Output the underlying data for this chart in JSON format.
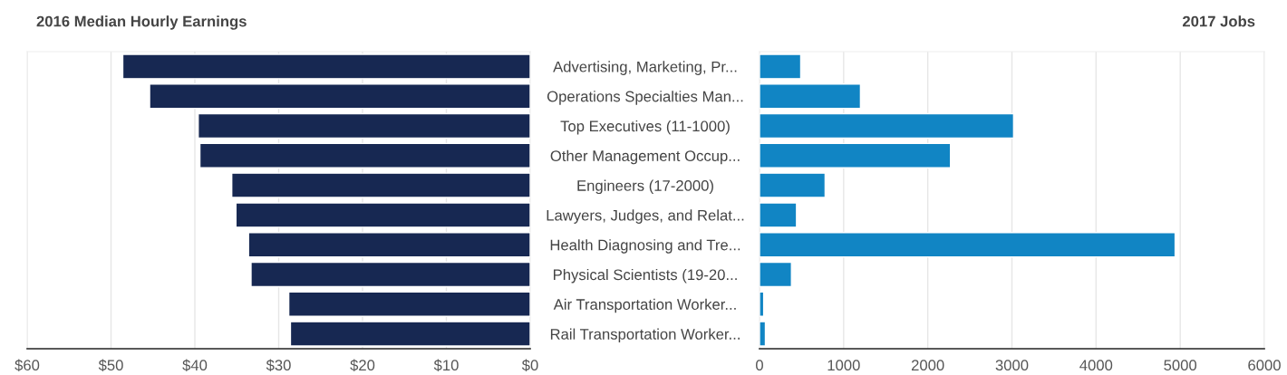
{
  "chart_data": [
    {
      "type": "bar",
      "orientation": "horizontal",
      "title": "2016 Median Hourly Earnings",
      "categories": [
        null,
        null,
        null,
        null,
        null,
        null,
        null,
        null,
        null,
        null
      ],
      "values": [
        48.6,
        45.4,
        39.6,
        39.4,
        35.6,
        35.1,
        33.6,
        33.3,
        28.8,
        28.6
      ],
      "color": "#172852",
      "xlim": [
        60,
        0
      ],
      "xticks": [
        {
          "value": 60,
          "label": "$60"
        },
        {
          "value": 50,
          "label": "$50"
        },
        {
          "value": 40,
          "label": "$40"
        },
        {
          "value": 30,
          "label": "$30"
        },
        {
          "value": 20,
          "label": "$20"
        },
        {
          "value": 10,
          "label": "$10"
        },
        {
          "value": 0,
          "label": "$0"
        }
      ],
      "grid": "x",
      "tick_labels": "x"
    },
    {
      "type": "bar",
      "orientation": "horizontal",
      "title": "2017 Jobs",
      "categories": [
        "Advertising, Marketing, Pr...",
        "Operations Specialties Man...",
        "Top Executives (11-1000)",
        "Other Management Occup...",
        "Engineers (17-2000)",
        "Lawyers, Judges, and Relat...",
        "Health Diagnosing and Tre...",
        "Physical Scientists (19-20...",
        "Air Transportation Worker...",
        "Rail Transportation Worker..."
      ],
      "values": [
        490,
        1200,
        3020,
        2270,
        780,
        440,
        4940,
        380,
        50,
        70
      ],
      "color": "#1185c4",
      "xlim": [
        0,
        6000
      ],
      "xticks": [
        0,
        1000,
        2000,
        3000,
        4000,
        5000,
        6000
      ],
      "grid": "x"
    }
  ]
}
